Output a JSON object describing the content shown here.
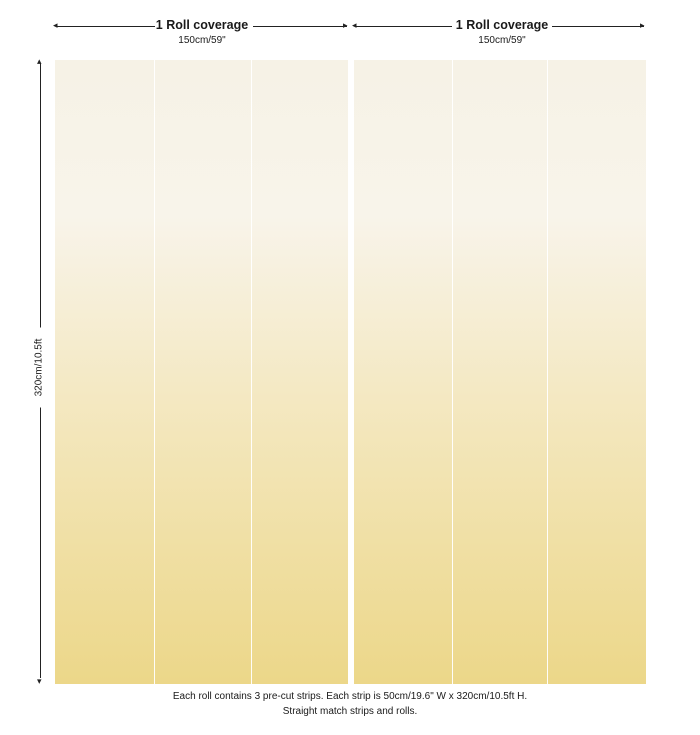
{
  "rolls": [
    {
      "coverage_title": "1 Roll coverage",
      "coverage_size": "150cm/59\""
    },
    {
      "coverage_title": "1 Roll coverage",
      "coverage_size": "150cm/59\""
    }
  ],
  "height_label": "320cm/10.5ft",
  "notes": {
    "line1": "Each roll contains 3 pre-cut strips.  Each strip is 50cm/19.6\" W x 320cm/10.5ft H.",
    "line2": "Straight match strips and rolls."
  },
  "colors": {
    "gradient_top": "#f6f2e6",
    "gradient_bottom": "#ecd789"
  }
}
